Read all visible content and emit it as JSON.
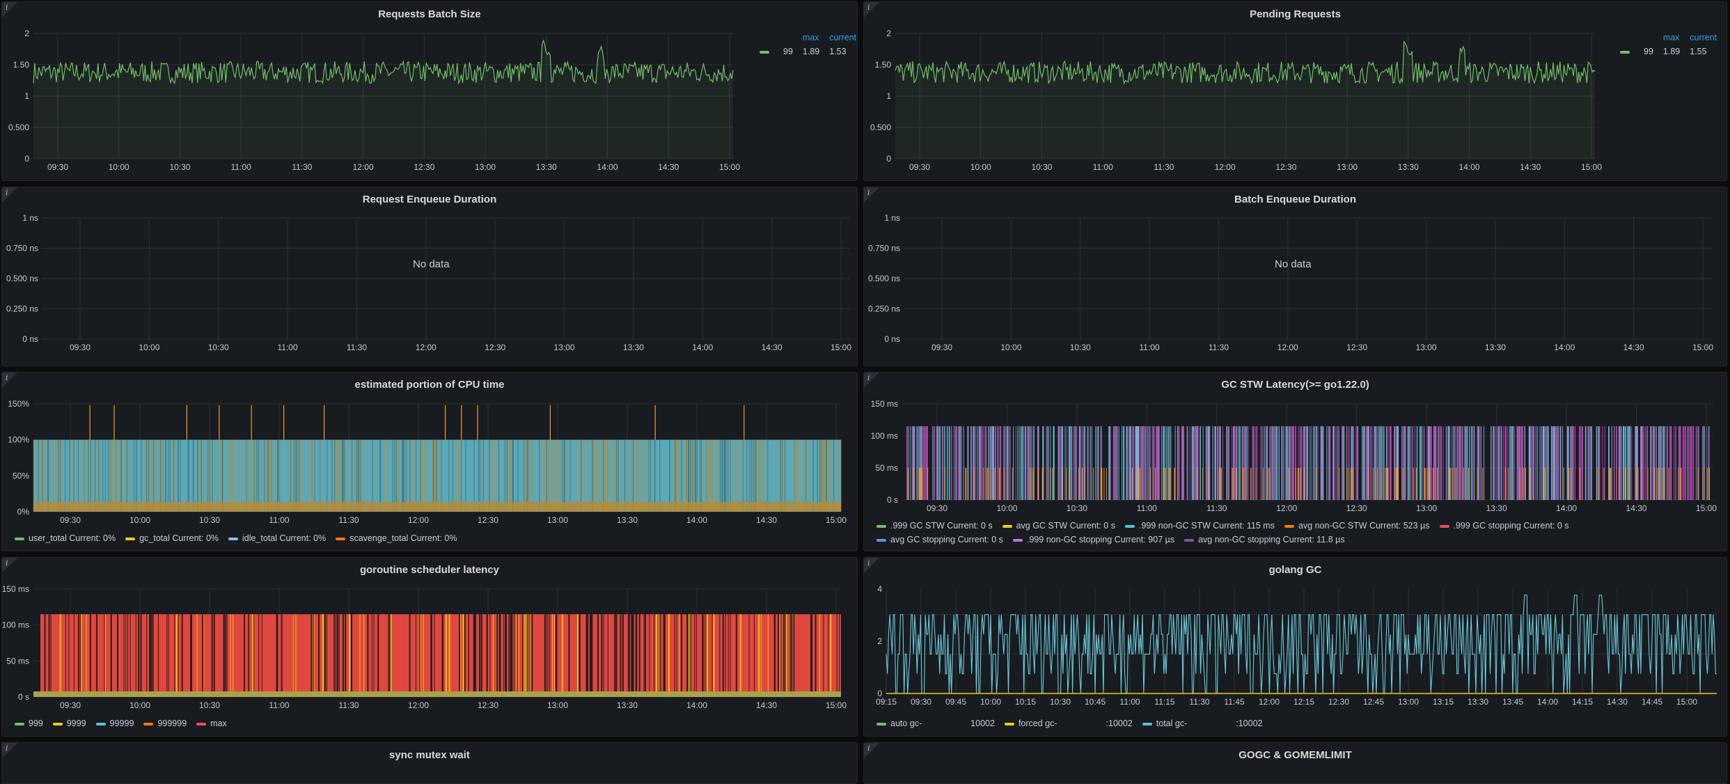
{
  "panels": {
    "batch_size": {
      "title": "Requests Batch Size",
      "legend": {
        "headers": [
          "max",
          "current"
        ],
        "row": {
          "name": "99",
          "max": "1.89",
          "current": "1.53",
          "color": "#73bf69"
        }
      }
    },
    "pending": {
      "title": "Pending Requests",
      "legend": {
        "headers": [
          "max",
          "current"
        ],
        "row": {
          "name": "99",
          "max": "1.89",
          "current": "1.55",
          "color": "#73bf69"
        }
      }
    },
    "req_enqueue": {
      "title": "Request Enqueue Duration",
      "no_data": "No data"
    },
    "batch_enqueue": {
      "title": "Batch Enqueue Duration",
      "no_data": "No data"
    },
    "cpu": {
      "title": "estimated portion of CPU time",
      "legend": [
        {
          "label": "user_total  Current: 0%",
          "color": "#73bf69"
        },
        {
          "label": "gc_total  Current: 0%",
          "color": "#f2cc0c"
        },
        {
          "label": "idle_total  Current: 0%",
          "color": "#8ab8ff"
        },
        {
          "label": "scavenge_total  Current: 0%",
          "color": "#ff780a"
        }
      ]
    },
    "gc_stw": {
      "title": "GC STW Latency(>= go1.22.0)",
      "legend": [
        {
          "label": ".999 GC STW  Current: 0 s",
          "color": "#73bf69"
        },
        {
          "label": "avg GC STW  Current: 0 s",
          "color": "#f2cc0c"
        },
        {
          "label": ".999 non-GC STW  Current: 115 ms",
          "color": "#5bc0de"
        },
        {
          "label": "avg non-GC STW  Current: 523 µs",
          "color": "#ff780a"
        },
        {
          "label": ".999 GC stopping  Current: 0 s",
          "color": "#f2495c"
        },
        {
          "label": "avg GC stopping  Current: 0 s",
          "color": "#5794f2"
        },
        {
          "label": ".999 non-GC stopping  Current: 907 µs",
          "color": "#b877d9"
        },
        {
          "label": "avg non-GC stopping  Current: 11.8 µs",
          "color": "#705da0"
        }
      ]
    },
    "goroutine": {
      "title": "goroutine scheduler latency",
      "legend": [
        {
          "label": "999",
          "color": "#73bf69"
        },
        {
          "label": "9999",
          "color": "#f2cc0c"
        },
        {
          "label": "99999",
          "color": "#5bc0de"
        },
        {
          "label": "999999",
          "color": "#ff780a"
        },
        {
          "label": "max",
          "color": "#f2495c"
        }
      ]
    },
    "golang_gc": {
      "title": "golang GC",
      "legend": [
        {
          "prefix": "auto gc-",
          "suffix": "10002",
          "color": "#73bf69"
        },
        {
          "prefix": "forced gc-",
          "suffix": ":10002",
          "color": "#f2cc0c"
        },
        {
          "prefix": "total gc-",
          "suffix": ":10002",
          "color": "#5bc0de"
        }
      ]
    },
    "mutex": {
      "title": "sync mutex wait"
    },
    "gogc": {
      "title": "GOGC & GOMEMLIMIT"
    }
  },
  "axes": {
    "x_standard": [
      "09:30",
      "10:00",
      "10:30",
      "11:00",
      "11:30",
      "12:00",
      "12:30",
      "13:00",
      "13:30",
      "14:00",
      "14:30",
      "15:00"
    ],
    "x_gc": [
      "09:15",
      "09:30",
      "09:45",
      "10:00",
      "10:15",
      "10:30",
      "10:45",
      "11:00",
      "11:15",
      "11:30",
      "11:45",
      "12:00",
      "12:15",
      "12:30",
      "12:45",
      "13:00",
      "13:15",
      "13:30",
      "13:45",
      "14:00",
      "14:15",
      "14:30",
      "14:45",
      "15:00"
    ],
    "y_batch": [
      "2",
      "1.50",
      "1",
      "0.500",
      "0"
    ],
    "y_ns": [
      "1 ns",
      "0.750 ns",
      "0.500 ns",
      "0.250 ns",
      "0 ns"
    ],
    "y_cpu": [
      "150%",
      "100%",
      "50%",
      "0%"
    ],
    "y_ms": [
      "150 ms",
      "100 ms",
      "50 ms",
      "0 s"
    ],
    "y_gc": [
      "4",
      "2",
      "0"
    ]
  },
  "colors": {
    "green": "#73bf69",
    "teal": "#6ccadc",
    "red": "#e0483f",
    "orange": "#ff9830",
    "magenta": "#c34dbb",
    "blue_legend_header": "#33a2e5"
  }
}
